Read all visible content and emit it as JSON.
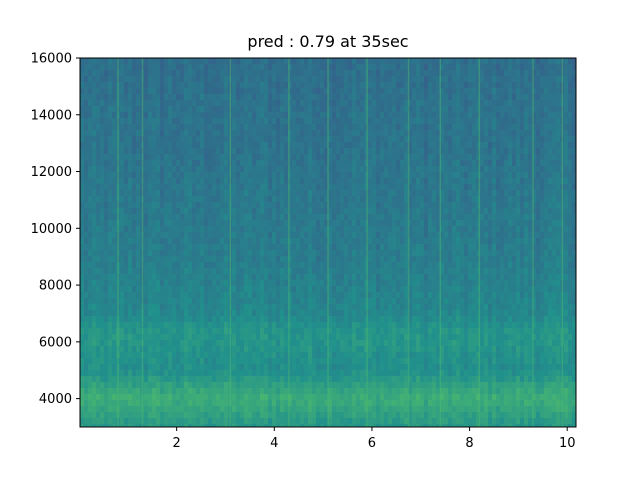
{
  "chart_data": {
    "type": "heatmap",
    "title": "pred : 0.79 at 35sec",
    "xlabel": "",
    "ylabel": "",
    "xlim": [
      0.02,
      10.18
    ],
    "ylim": [
      3000,
      16000
    ],
    "x_ticks": [
      2,
      4,
      6,
      8,
      10
    ],
    "x_tick_labels": [
      "2",
      "4",
      "6",
      "8",
      "10"
    ],
    "y_ticks": [
      4000,
      6000,
      8000,
      10000,
      12000,
      14000,
      16000
    ],
    "y_tick_labels": [
      "4000",
      "6000",
      "8000",
      "10000",
      "12000",
      "14000",
      "16000"
    ],
    "colormap": "viridis",
    "grid": false,
    "intensity_profile": {
      "frequency": [
        3000,
        3500,
        4000,
        4500,
        5000,
        5500,
        6000,
        6500,
        7000,
        8000,
        9000,
        10000,
        11000,
        12000,
        13000,
        14000,
        15000,
        16000
      ],
      "level": [
        0.52,
        0.57,
        0.62,
        0.56,
        0.49,
        0.5,
        0.52,
        0.51,
        0.46,
        0.44,
        0.42,
        0.41,
        0.4,
        0.39,
        0.38,
        0.38,
        0.37,
        0.36
      ]
    },
    "vertical_streaks_x": [
      0.8,
      1.3,
      3.1,
      4.3,
      5.1,
      5.9,
      6.75,
      7.4,
      8.2,
      9.3,
      9.9
    ]
  }
}
